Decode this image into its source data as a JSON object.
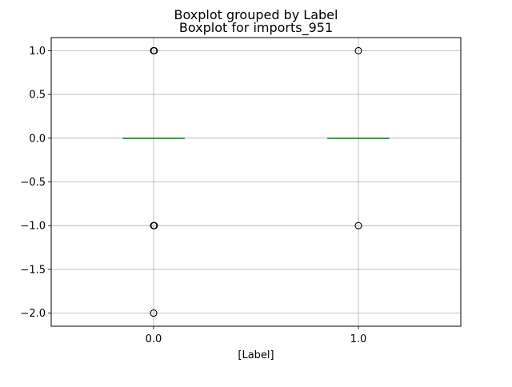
{
  "chart_data": {
    "type": "boxplot",
    "suptitle": "Boxplot grouped by Label",
    "title": "Boxplot for imports_951",
    "xlabel": "[Label]",
    "ylabel": "",
    "categories": [
      "0.0",
      "1.0"
    ],
    "ylim": [
      -2.15,
      1.15
    ],
    "yticks": [
      1.0,
      0.5,
      0.0,
      -0.5,
      -1.0,
      -1.5,
      -2.0
    ],
    "ytick_labels": [
      "1.0",
      "0.5",
      "0.0",
      "−0.5",
      "−1.0",
      "−1.5",
      "−2.0"
    ],
    "grid": true,
    "boxes": [
      {
        "category": "0.0",
        "q1": 0,
        "median": 0,
        "q3": 0,
        "whisker_low": 0,
        "whisker_high": 0,
        "outliers": [
          1.0,
          -1.0,
          -2.0
        ]
      },
      {
        "category": "1.0",
        "q1": 0,
        "median": 0,
        "q3": 0,
        "whisker_low": 0,
        "whisker_high": 0,
        "outliers": [
          1.0,
          -1.0
        ]
      }
    ],
    "colors": {
      "box": "#3b75af",
      "median": "#2ca02c",
      "outlier": "#000000",
      "grid": "#b0b0b0",
      "spine": "#000000"
    }
  }
}
